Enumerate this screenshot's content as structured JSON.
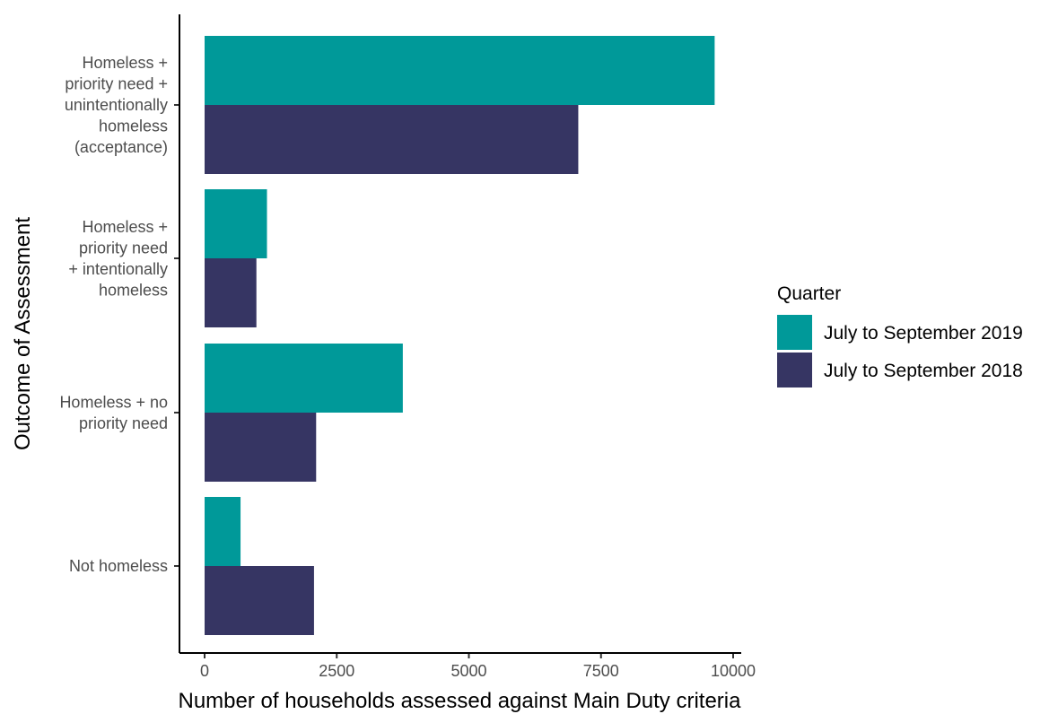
{
  "chart_data": {
    "type": "bar",
    "orientation": "horizontal",
    "xlabel": "Number of households assessed against Main Duty criteria",
    "ylabel": "Outcome of Assessment",
    "xlim": [
      0,
      10000
    ],
    "xticks": [
      0,
      2500,
      5000,
      7500,
      10000
    ],
    "grid": false,
    "legend_position": "right",
    "categories": [
      {
        "key": "acceptance",
        "lines": [
          "Homeless +",
          "priority need +",
          "unintentionally",
          "homeless",
          "(acceptance)"
        ]
      },
      {
        "key": "intentional",
        "lines": [
          "Homeless +",
          "priority need",
          "+ intentionally",
          "homeless"
        ]
      },
      {
        "key": "no-priority",
        "lines": [
          "Homeless + no",
          "priority need"
        ]
      },
      {
        "key": "not-homeless",
        "lines": [
          "Not homeless"
        ]
      }
    ],
    "series": [
      {
        "name": "July to September 2019",
        "color": "#009999",
        "values": [
          9650,
          1180,
          3750,
          680
        ]
      },
      {
        "name": "July to September 2018",
        "color": "#363563",
        "values": [
          7070,
          980,
          2110,
          2070
        ]
      }
    ],
    "legend": {
      "title": "Quarter"
    }
  }
}
